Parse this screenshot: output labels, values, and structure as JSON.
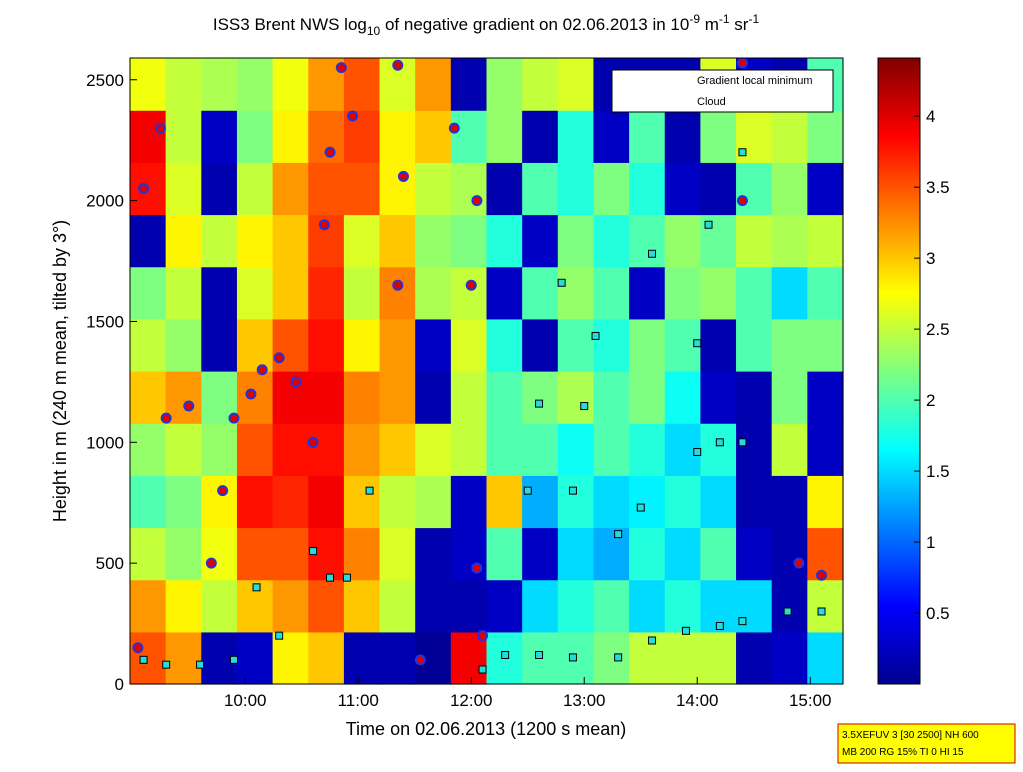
{
  "chart_data": {
    "type": "heatmap",
    "title": [
      "ISS3 Brent NWS log",
      "10",
      " of negative gradient on 02.06.2013 in 10",
      "-9",
      " m",
      "-1",
      " sr",
      "-1"
    ],
    "xlabel": "Time on 02.06.2013 (1200 s mean)",
    "ylabel": "Height in m (240 m mean, tilted by 3°)",
    "xlim": [
      8.98,
      15.29
    ],
    "xticks": [
      {
        "value": 10,
        "label": "10:00"
      },
      {
        "value": 11,
        "label": "11:00"
      },
      {
        "value": 12,
        "label": "12:00"
      },
      {
        "value": 13,
        "label": "13:00"
      },
      {
        "value": 14,
        "label": "14:00"
      },
      {
        "value": 15,
        "label": "15:00"
      }
    ],
    "ylim": [
      0,
      2590
    ],
    "yticks": [
      0,
      500,
      1000,
      1500,
      2000,
      2500
    ],
    "colorbar": {
      "clim": [
        0,
        4.41
      ],
      "ticks": [
        0.5,
        1,
        1.5,
        2,
        2.5,
        3,
        3.5,
        4
      ]
    },
    "z": [
      [
        3.5,
        3.2,
        0.2,
        0.3,
        2.8,
        3.0,
        0.2,
        0.2,
        0.1,
        3.9,
        1.8,
        2.0,
        2.0,
        2.2,
        2.5,
        2.5,
        2.5,
        0.2,
        0.3,
        1.5
      ],
      [
        3.2,
        2.8,
        2.5,
        3.0,
        3.2,
        3.5,
        3.0,
        2.5,
        0.2,
        0.2,
        0.3,
        1.5,
        1.8,
        2.0,
        1.5,
        1.8,
        1.5,
        1.5,
        0.2,
        2.5
      ],
      [
        2.5,
        2.3,
        2.7,
        3.5,
        3.5,
        3.8,
        3.3,
        2.6,
        0.2,
        0.3,
        2.0,
        0.3,
        1.5,
        1.3,
        1.8,
        1.5,
        2.0,
        0.3,
        0.2,
        3.5
      ],
      [
        2.0,
        2.2,
        2.8,
        3.8,
        3.7,
        3.9,
        3.0,
        2.5,
        2.4,
        0.3,
        3.0,
        1.3,
        1.8,
        1.5,
        1.6,
        1.8,
        1.5,
        0.2,
        0.2,
        2.8
      ],
      [
        2.3,
        2.5,
        2.3,
        3.5,
        3.8,
        3.8,
        3.2,
        3.0,
        2.6,
        2.5,
        2.0,
        2.0,
        1.7,
        2.0,
        1.8,
        1.5,
        1.8,
        0.2,
        2.5,
        0.3
      ],
      [
        3.0,
        3.2,
        2.2,
        3.3,
        3.9,
        3.9,
        3.3,
        3.2,
        0.2,
        2.5,
        2.0,
        2.2,
        2.4,
        2.0,
        2.2,
        1.7,
        0.3,
        0.2,
        2.2,
        0.3
      ],
      [
        2.5,
        2.3,
        0.2,
        3.0,
        3.5,
        3.8,
        2.8,
        3.2,
        0.3,
        2.6,
        1.8,
        0.2,
        2.0,
        1.8,
        2.2,
        2.0,
        0.2,
        2.0,
        2.2,
        2.2
      ],
      [
        2.2,
        2.5,
        0.2,
        2.6,
        3.0,
        3.7,
        2.5,
        3.3,
        2.4,
        2.5,
        0.3,
        2.0,
        2.3,
        2.0,
        0.3,
        2.2,
        2.3,
        2.0,
        1.5,
        2.0
      ],
      [
        0.2,
        2.8,
        2.5,
        2.8,
        3.0,
        3.6,
        2.6,
        3.0,
        2.3,
        2.2,
        1.8,
        0.3,
        2.2,
        1.8,
        2.0,
        2.3,
        2.1,
        2.5,
        2.4,
        2.5
      ],
      [
        3.8,
        2.6,
        0.2,
        2.5,
        3.2,
        3.5,
        3.5,
        2.8,
        2.5,
        2.4,
        0.2,
        2.0,
        1.8,
        2.2,
        1.8,
        0.3,
        0.2,
        2.0,
        2.3,
        0.3
      ],
      [
        3.9,
        2.5,
        0.3,
        2.2,
        2.8,
        3.4,
        3.6,
        2.8,
        3.0,
        2.0,
        2.3,
        0.2,
        1.8,
        0.3,
        2.0,
        0.2,
        2.2,
        2.6,
        2.5,
        2.2
      ],
      [
        2.7,
        2.5,
        2.4,
        2.3,
        2.7,
        3.2,
        3.5,
        2.6,
        3.2,
        0.2,
        2.3,
        2.5,
        2.6,
        0.2,
        0.2,
        0.2,
        2.6,
        0.3,
        0.2,
        2.0
      ]
    ],
    "series": [
      {
        "name": "Gradient local minimum",
        "color": "#22dddd",
        "marker": "square",
        "x": [
          9.1,
          9.3,
          9.6,
          9.9,
          10.1,
          10.3,
          10.6,
          10.75,
          10.9,
          11.1,
          12.1,
          12.3,
          12.6,
          12.9,
          13.3,
          13.6,
          13.9,
          14.2,
          14.4,
          12.5,
          12.6,
          12.9,
          13.0,
          13.3,
          13.5,
          13.6,
          13.1,
          14.0,
          14.0,
          14.2,
          14.4,
          14.4,
          14.8,
          15.1,
          12.8,
          14.1
        ],
        "values": [
          100,
          80,
          80,
          100,
          400,
          200,
          550,
          440,
          440,
          800,
          60,
          120,
          120,
          110,
          110,
          180,
          220,
          240,
          260,
          800,
          1160,
          800,
          1150,
          620,
          730,
          1780,
          1440,
          1410,
          960,
          1000,
          1000,
          2200,
          300,
          300,
          1660,
          1900
        ]
      },
      {
        "name": "Cloud",
        "color": "#e00000",
        "marker": "circle",
        "x": [
          9.05,
          9.1,
          9.25,
          9.3,
          9.5,
          9.7,
          9.8,
          9.9,
          10.05,
          10.15,
          10.3,
          10.45,
          10.6,
          10.7,
          10.75,
          10.85,
          10.95,
          11.35,
          11.4,
          11.35,
          11.55,
          11.85,
          12.0,
          12.05,
          12.05,
          12.1,
          14.4,
          14.4,
          14.9,
          15.1
        ],
        "values": [
          150,
          2050,
          2300,
          1100,
          1150,
          500,
          800,
          1100,
          1200,
          1300,
          1350,
          1250,
          1000,
          1900,
          2200,
          2550,
          2350,
          2560,
          2100,
          1650,
          100,
          2300,
          1650,
          2000,
          480,
          200,
          2570,
          2000,
          500,
          450
        ]
      }
    ],
    "legend": "upper right",
    "note": [
      "3.5XEFUV 3 [30 2500] NH 600",
      "MB 200 RG 15% TI 0 HI 15"
    ]
  }
}
